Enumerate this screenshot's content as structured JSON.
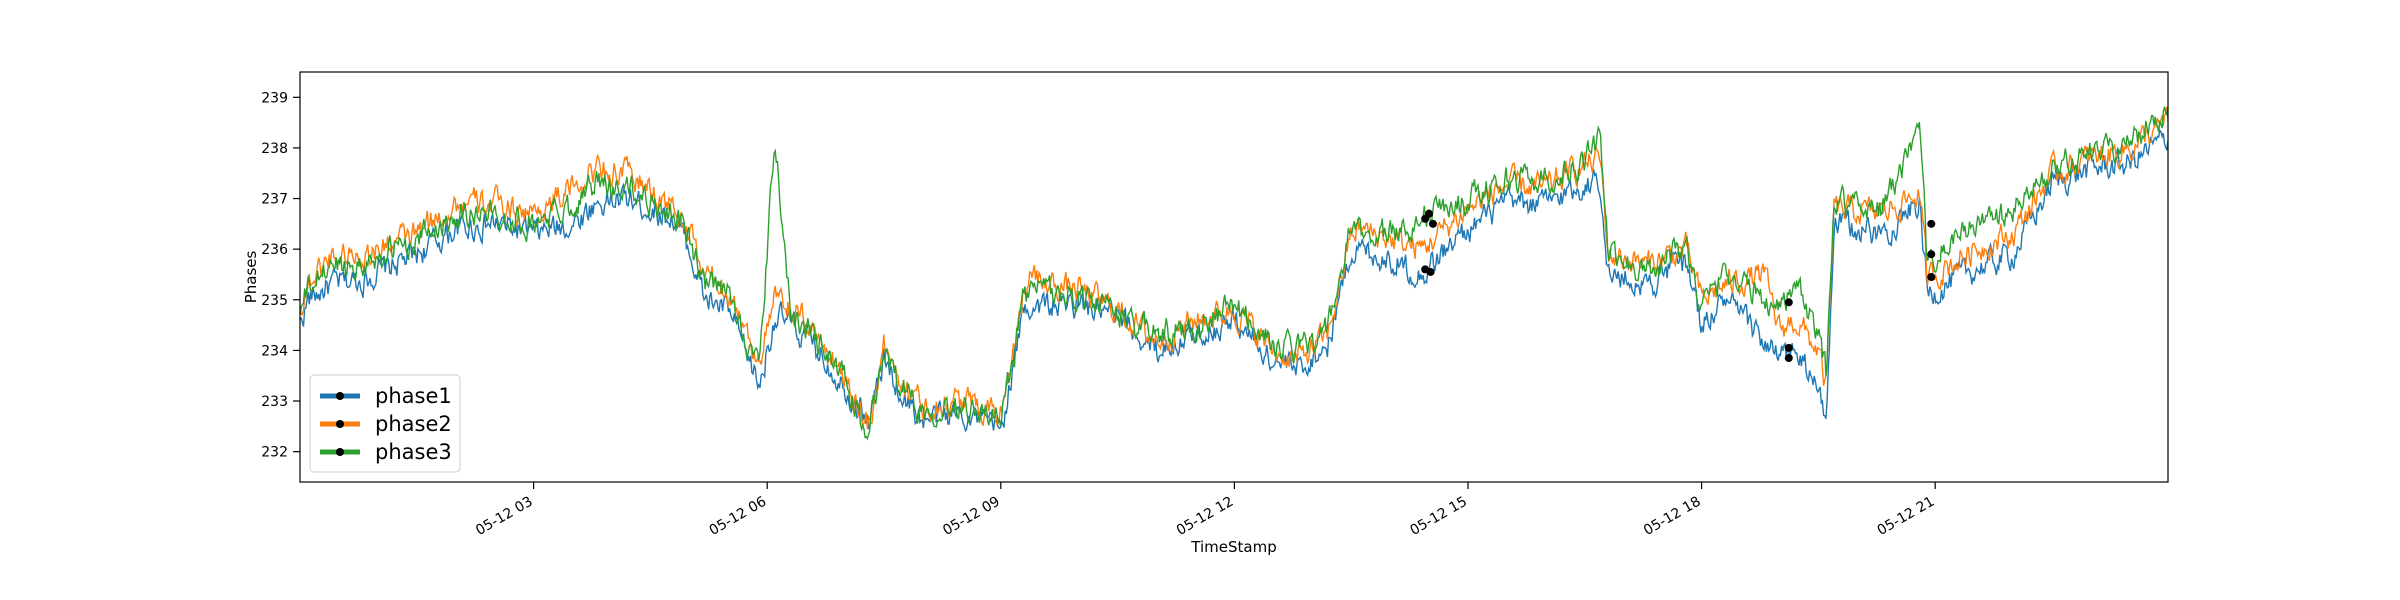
{
  "chart_data": {
    "type": "line",
    "xlabel": "TimeStamp",
    "ylabel": "Phases",
    "x_range": [
      "05-12 00:00",
      "05-12 23:59"
    ],
    "ylim": [
      231.4,
      239.5
    ],
    "y_ticks": [
      232,
      233,
      234,
      235,
      236,
      237,
      238,
      239
    ],
    "x_ticks": [
      {
        "t": 3,
        "label": "05-12 03"
      },
      {
        "t": 6,
        "label": "05-12 06"
      },
      {
        "t": 9,
        "label": "05-12 09"
      },
      {
        "t": 12,
        "label": "05-12 12"
      },
      {
        "t": 15,
        "label": "05-12 15"
      },
      {
        "t": 18,
        "label": "05-12 18"
      },
      {
        "t": 21,
        "label": "05-12 21"
      }
    ],
    "grid": false,
    "legend_position": "lower-left",
    "x_hours": [
      0,
      0.1,
      0.4,
      0.8,
      1.5,
      2.0,
      2.5,
      3.0,
      3.5,
      3.8,
      4.2,
      4.8,
      5.0,
      5.2,
      5.5,
      5.9,
      6.1,
      6.3,
      6.6,
      7.0,
      7.3,
      7.5,
      7.7,
      8.0,
      8.5,
      9.0,
      9.3,
      9.4,
      10.0,
      10.5,
      11.0,
      11.5,
      12.0,
      12.5,
      12.8,
      13.2,
      13.5,
      13.6,
      14.0,
      14.4,
      15.0,
      15.5,
      16.0,
      16.4,
      16.7,
      16.8,
      17.3,
      17.8,
      18.0,
      18.3,
      18.8,
      19.0,
      19.2,
      19.5,
      19.6,
      19.7,
      20.3,
      20.8,
      20.9,
      21.5,
      22.0,
      22.5,
      23.0,
      23.5,
      23.99
    ],
    "series": [
      {
        "name": "phase1",
        "color": "#1f77b4",
        "values": [
          234.5,
          235.0,
          235.3,
          235.4,
          235.9,
          236.4,
          236.5,
          236.3,
          236.5,
          236.9,
          237.0,
          236.6,
          236.0,
          235.0,
          234.8,
          233.3,
          234.7,
          234.5,
          234.1,
          233.3,
          232.6,
          233.8,
          233.2,
          232.6,
          232.8,
          232.4,
          234.8,
          234.9,
          234.9,
          234.6,
          234.0,
          234.3,
          234.6,
          233.8,
          233.6,
          234.1,
          236.0,
          236.0,
          235.8,
          235.5,
          236.4,
          236.9,
          236.9,
          237.2,
          237.4,
          235.5,
          235.3,
          235.8,
          234.5,
          235.0,
          234.2,
          233.8,
          234.0,
          233.2,
          232.6,
          236.5,
          236.3,
          236.9,
          235.1,
          235.6,
          235.9,
          237.3,
          237.6,
          237.7,
          238.2
        ]
      },
      {
        "name": "phase2",
        "color": "#ff7f0e",
        "values": [
          234.8,
          235.3,
          235.9,
          235.9,
          236.3,
          236.9,
          236.9,
          236.7,
          237.2,
          237.6,
          237.5,
          236.8,
          236.3,
          235.5,
          235.2,
          233.8,
          235.0,
          234.8,
          234.4,
          233.5,
          232.5,
          234.1,
          233.5,
          232.9,
          233.0,
          232.8,
          235.2,
          235.4,
          235.2,
          234.8,
          234.2,
          234.6,
          234.8,
          234.0,
          233.8,
          234.3,
          236.3,
          236.4,
          236.2,
          236.0,
          236.8,
          237.3,
          237.2,
          237.6,
          237.8,
          235.9,
          235.7,
          236.0,
          235.0,
          235.3,
          235.5,
          234.4,
          234.6,
          234.0,
          233.2,
          236.8,
          236.7,
          237.1,
          235.4,
          236.0,
          236.3,
          237.5,
          237.8,
          238.0,
          238.5
        ]
      },
      {
        "name": "phase3",
        "color": "#2ca02c",
        "values": [
          234.7,
          235.2,
          235.7,
          235.7,
          236.2,
          236.7,
          236.7,
          236.5,
          236.9,
          237.3,
          237.2,
          236.7,
          236.2,
          235.3,
          235.1,
          233.6,
          238.2,
          234.7,
          234.3,
          233.4,
          232.2,
          234.0,
          233.4,
          232.8,
          233.0,
          232.6,
          235.0,
          235.2,
          235.1,
          234.7,
          234.3,
          234.5,
          234.9,
          234.1,
          234.0,
          234.4,
          236.4,
          236.3,
          236.3,
          236.6,
          237.0,
          237.4,
          237.4,
          237.6,
          238.2,
          235.9,
          235.6,
          236.1,
          234.8,
          235.6,
          235.0,
          234.9,
          235.3,
          234.3,
          233.5,
          237.0,
          236.8,
          238.2,
          235.7,
          236.5,
          236.7,
          237.6,
          237.9,
          238.1,
          238.8
        ]
      }
    ],
    "markers": [
      {
        "t": 14.45,
        "v": 236.6
      },
      {
        "t": 14.5,
        "v": 236.7
      },
      {
        "t": 14.55,
        "v": 236.5
      },
      {
        "t": 14.45,
        "v": 235.6
      },
      {
        "t": 14.52,
        "v": 235.55
      },
      {
        "t": 19.12,
        "v": 234.95
      },
      {
        "t": 19.12,
        "v": 234.05
      },
      {
        "t": 19.12,
        "v": 233.85
      },
      {
        "t": 20.95,
        "v": 236.5
      },
      {
        "t": 20.95,
        "v": 235.9
      },
      {
        "t": 20.95,
        "v": 235.45
      }
    ],
    "legend": {
      "entries": [
        {
          "label": "phase1",
          "color": "#1f77b4"
        },
        {
          "label": "phase2",
          "color": "#ff7f0e"
        },
        {
          "label": "phase3",
          "color": "#2ca02c"
        }
      ]
    }
  }
}
